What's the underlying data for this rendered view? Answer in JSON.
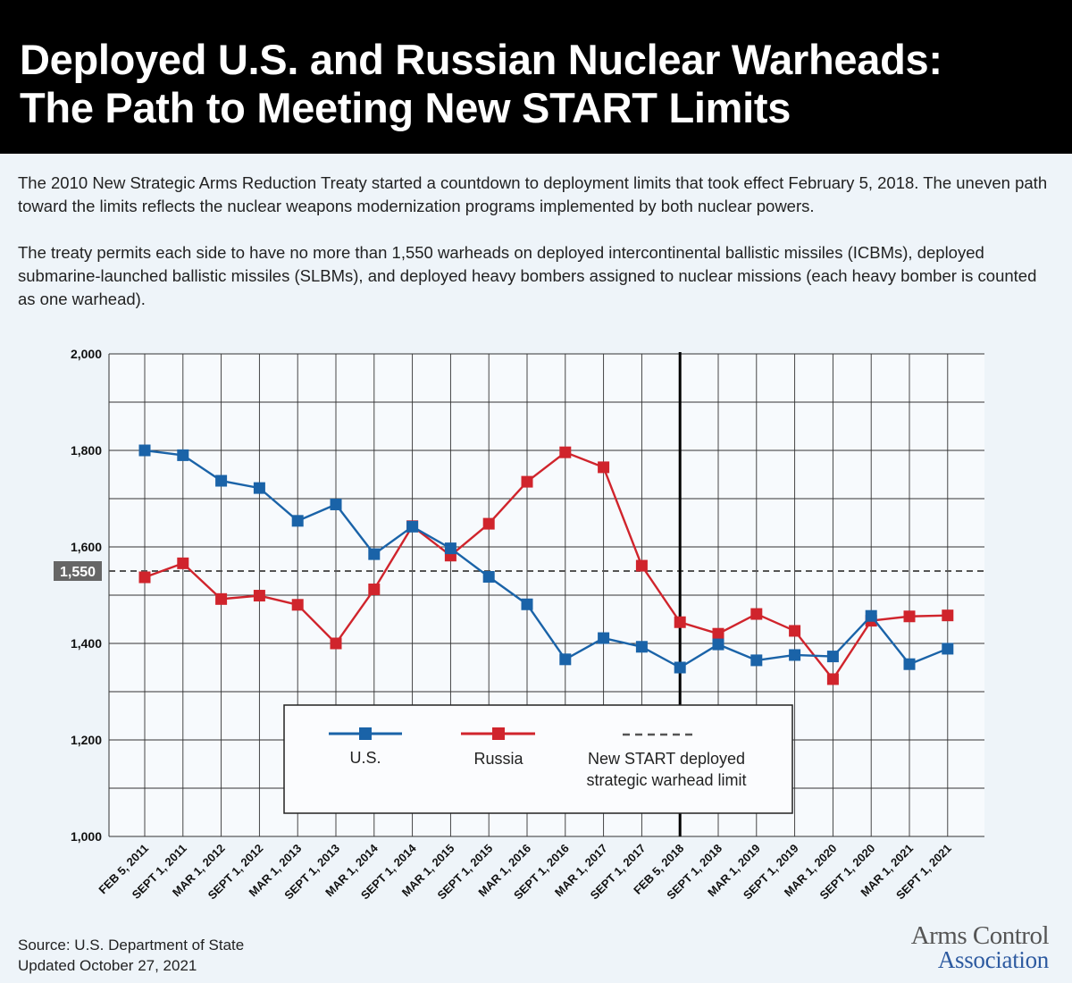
{
  "header": {
    "title_line1": "Deployed U.S. and Russian Nuclear Warheads:",
    "title_line2": "The Path to Meeting New START Limits"
  },
  "intro": {
    "p1": "The 2010 New Strategic Arms Reduction Treaty started a countdown to deployment limits that took effect February 5, 2018. The uneven path toward the limits reflects the nuclear weapons modernization programs implemented by both nuclear powers.",
    "p2": "The treaty permits each side to have no more than 1,550 warheads on deployed intercontinental ballistic missiles (ICBMs), deployed submarine-launched ballistic missiles (SLBMs), and deployed heavy bombers assigned to nuclear missions (each heavy bomber is counted as one warhead)."
  },
  "chart_data": {
    "type": "line",
    "ylim": [
      1000,
      2000
    ],
    "yticks": [
      1000,
      1200,
      1400,
      1600,
      1800,
      2000
    ],
    "ytick_labels": [
      "1,000",
      "1,200",
      "1,400",
      "1,600",
      "1,800",
      "2,000"
    ],
    "grid": true,
    "categories": [
      "FEB 5, 2011",
      "SEPT 1, 2011",
      "MAR 1, 2012",
      "SEPT 1, 2012",
      "MAR 1, 2013",
      "SEPT 1, 2013",
      "MAR 1, 2014",
      "SEPT 1, 2014",
      "MAR 1, 2015",
      "SEPT 1, 2015",
      "MAR 1, 2016",
      "SEPT 1, 2016",
      "MAR 1, 2017",
      "SEPT 1, 2017",
      "FEB 5, 2018",
      "SEPT 1, 2018",
      "MAR 1, 2019",
      "SEPT 1, 2019",
      "MAR 1, 2020",
      "SEPT 1, 2020",
      "MAR 1, 2021",
      "SEPT 1, 2021"
    ],
    "series": [
      {
        "name": "U.S.",
        "color": "#1a63a8",
        "values": [
          1800,
          1790,
          1737,
          1722,
          1654,
          1688,
          1585,
          1642,
          1597,
          1538,
          1481,
          1367,
          1411,
          1393,
          1350,
          1398,
          1365,
          1376,
          1373,
          1457,
          1357,
          1389
        ]
      },
      {
        "name": "Russia",
        "color": "#d0242c",
        "values": [
          1537,
          1566,
          1492,
          1499,
          1480,
          1400,
          1512,
          1643,
          1582,
          1648,
          1735,
          1796,
          1765,
          1561,
          1444,
          1420,
          1461,
          1426,
          1326,
          1447,
          1456,
          1458
        ]
      }
    ],
    "reference_line": {
      "value": 1550,
      "label": "1,550",
      "name": "New START deployed strategic warhead limit",
      "color": "#555555"
    },
    "vertical_marker": {
      "category": "FEB 5, 2018"
    },
    "legend": {
      "placement": "bottom-center",
      "us_label": "U.S.",
      "russia_label": "Russia",
      "limit_label_line1": "New START deployed",
      "limit_label_line2": "strategic warhead limit"
    }
  },
  "footer": {
    "source": "Source: U.S. Department of State",
    "updated": "Updated October 27, 2021"
  },
  "logo": {
    "line1": "Arms Control",
    "line2": "Association"
  }
}
